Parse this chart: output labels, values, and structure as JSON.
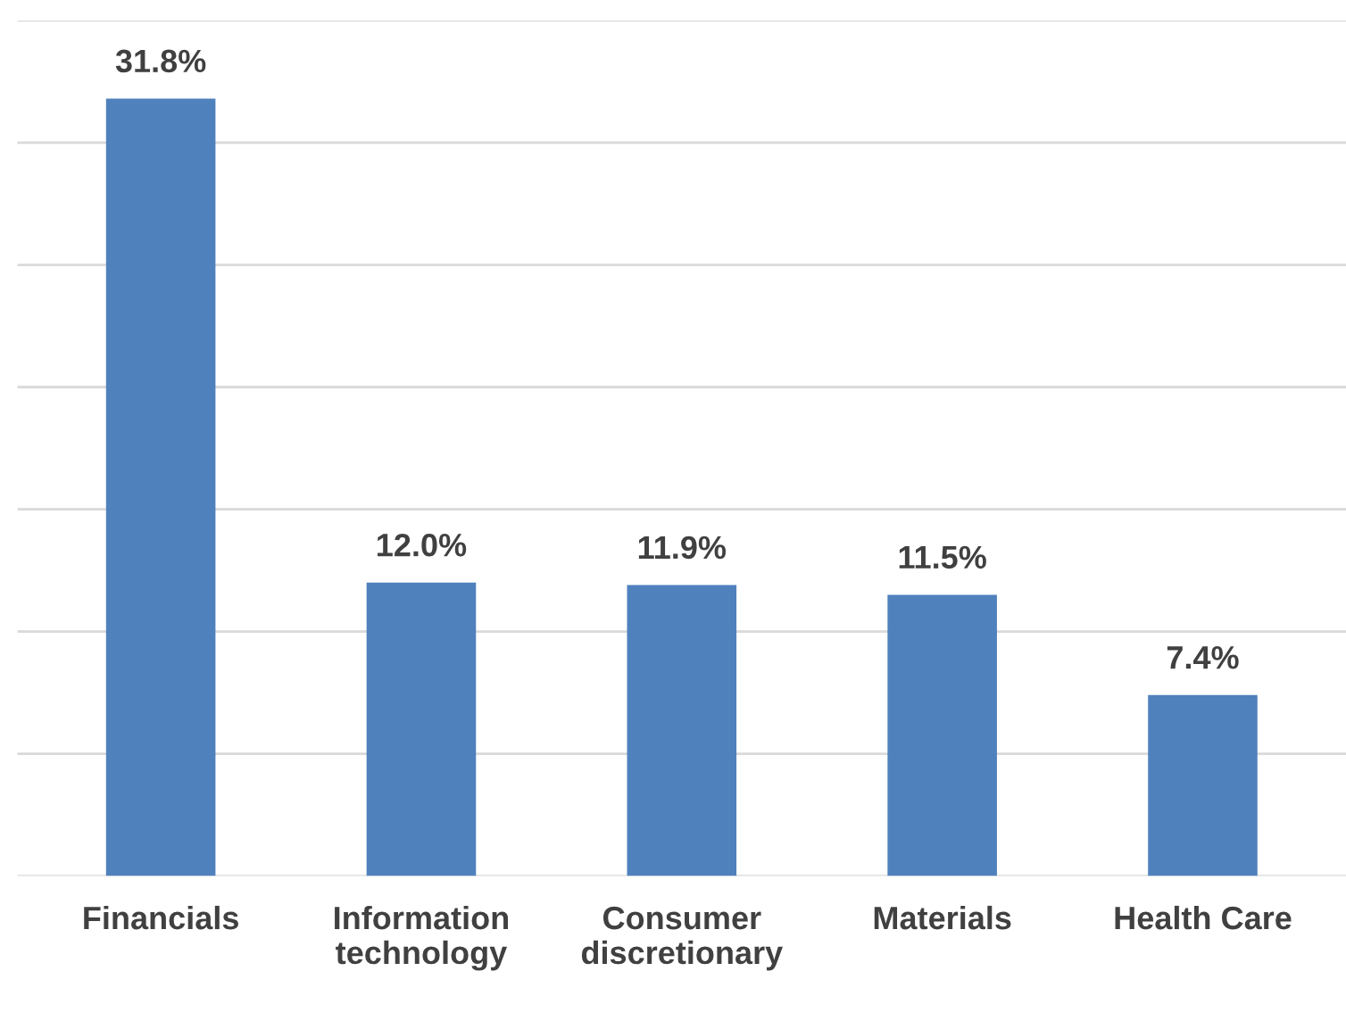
{
  "chart_data": {
    "type": "bar",
    "categories": [
      "Financials",
      "Information\ntechnology",
      "Consumer\ndiscretionary",
      "Materials",
      "Health Care"
    ],
    "values": [
      31.8,
      12.0,
      11.9,
      11.5,
      7.4
    ],
    "value_labels": [
      "31.8%",
      "12.0%",
      "11.9%",
      "11.5%",
      "7.4%"
    ],
    "color": "#4f81bd",
    "ylim": [
      0,
      35
    ],
    "yticks": [
      {
        "value": 0,
        "label": null
      },
      {
        "value": 5,
        "label": null
      },
      {
        "value": 10,
        "label": null
      },
      {
        "value": 15,
        "label": null
      },
      {
        "value": 20,
        "label": null
      },
      {
        "value": 25,
        "label": null
      },
      {
        "value": 30,
        "label": null
      },
      {
        "value": 35,
        "label": null
      }
    ],
    "grid": "y",
    "tick_labels": "x"
  }
}
